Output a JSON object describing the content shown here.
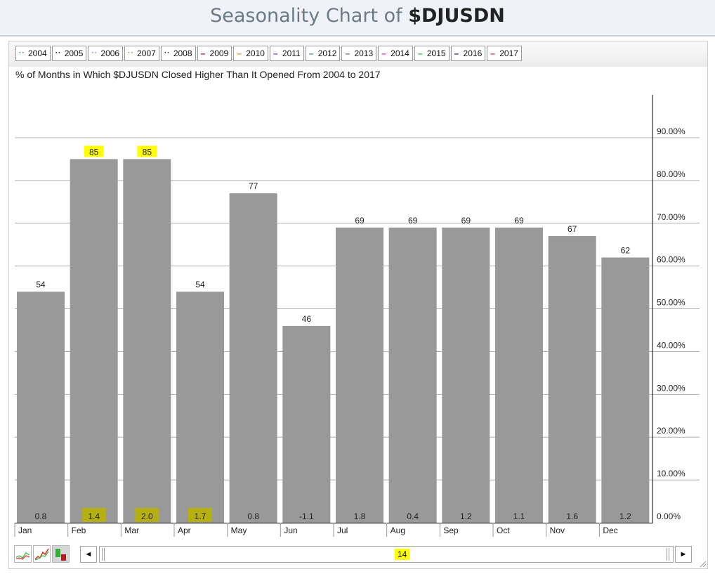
{
  "header": {
    "title_prefix": "Seasonality Chart of ",
    "symbol": "$DJUSDN"
  },
  "legend": [
    {
      "label": "2004",
      "color": "#2e7bbf",
      "style": "dotted"
    },
    {
      "label": "2005",
      "color": "#222222",
      "style": "dotted"
    },
    {
      "label": "2006",
      "color": "#e03ce0",
      "style": "dotted"
    },
    {
      "label": "2007",
      "color": "#2bb52b",
      "style": "dotted"
    },
    {
      "label": "2008",
      "color": "#1a1a8c",
      "style": "dotted"
    },
    {
      "label": "2009",
      "color": "#b00020",
      "style": "solid"
    },
    {
      "label": "2010",
      "color": "#ff8c00",
      "style": "solid"
    },
    {
      "label": "2011",
      "color": "#7b2fbf",
      "style": "solid"
    },
    {
      "label": "2012",
      "color": "#1a9a8a",
      "style": "solid"
    },
    {
      "label": "2013",
      "color": "#666666",
      "style": "solid"
    },
    {
      "label": "2014",
      "color": "#e61ee6",
      "style": "solid"
    },
    {
      "label": "2015",
      "color": "#22c022",
      "style": "solid"
    },
    {
      "label": "2016",
      "color": "#1a1aa8",
      "style": "solid"
    },
    {
      "label": "2017",
      "color": "#e02020",
      "style": "solid"
    }
  ],
  "colors": {
    "bar": "#999999",
    "highlight": "#ffff00",
    "grid": "#b0b0b0"
  },
  "chart_data": {
    "type": "bar",
    "title": "% of Months in Which $DJUSDN Closed Higher Than It Opened From 2004 to 2017",
    "categories": [
      "Jan",
      "Feb",
      "Mar",
      "Apr",
      "May",
      "Jun",
      "Jul",
      "Aug",
      "Sep",
      "Oct",
      "Nov",
      "Dec"
    ],
    "values": [
      54,
      85,
      85,
      54,
      77,
      46,
      69,
      69,
      69,
      69,
      67,
      62
    ],
    "value_labels": [
      "54",
      "85",
      "85",
      "54",
      "77",
      "46",
      "69",
      "69",
      "69",
      "69",
      "67",
      "62"
    ],
    "avg_change_labels": [
      "0.8",
      "1.4",
      "2.0",
      "1.7",
      "0.8",
      "-1.1",
      "1.8",
      "0.4",
      "1.2",
      "1.1",
      "1.6",
      "1.2"
    ],
    "highlighted_values": [
      "Feb",
      "Mar"
    ],
    "highlighted_changes": [
      "Feb",
      "Mar",
      "Apr"
    ],
    "ylim": [
      0,
      100
    ],
    "ytick_values": [
      0,
      10,
      20,
      30,
      40,
      50,
      60,
      70,
      80,
      90
    ],
    "yticks": [
      "0.00%",
      "10.00%",
      "20.00%",
      "30.00%",
      "40.00%",
      "50.00%",
      "60.00%",
      "70.00%",
      "80.00%",
      "90.00%"
    ],
    "y_axis_side": "right",
    "grid": true
  },
  "scroll": {
    "count": "14",
    "left_arrow": "◄",
    "right_arrow": "►"
  }
}
